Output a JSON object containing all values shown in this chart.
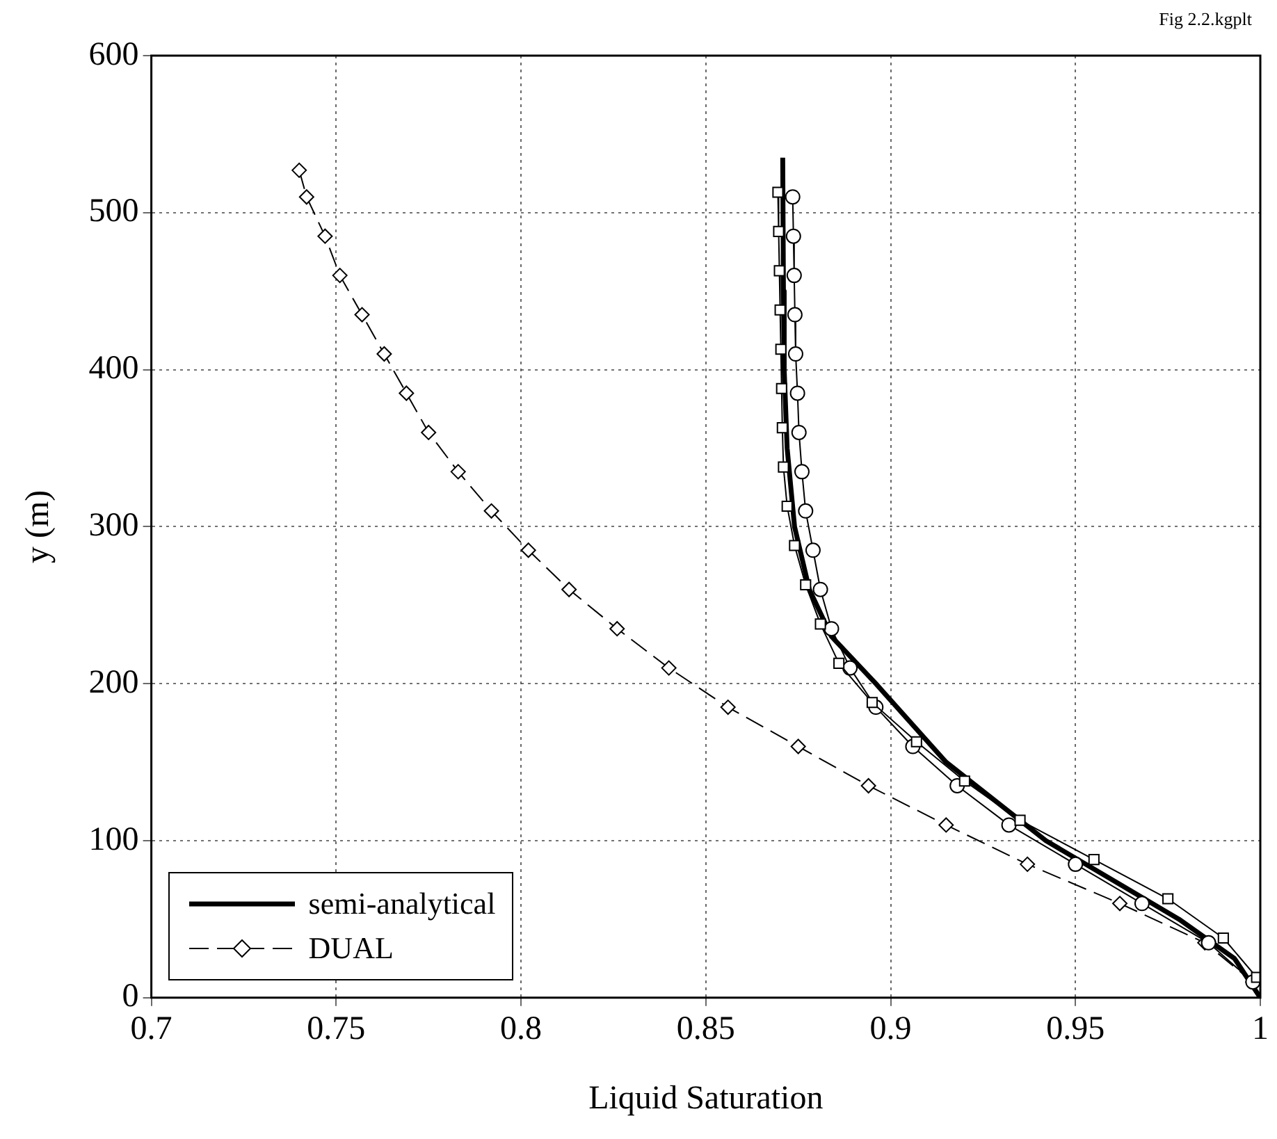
{
  "chart_data": {
    "type": "line",
    "xlabel": "Liquid Saturation",
    "ylabel": "y (m)",
    "xlim": [
      0.7,
      1
    ],
    "xticks": [
      0.7,
      0.75,
      0.8,
      0.85,
      0.9,
      0.95,
      1
    ],
    "ylim": [
      0,
      600
    ],
    "yticks": [
      0,
      100,
      200,
      300,
      400,
      500,
      600
    ],
    "grid": true,
    "legend": "bottom left",
    "annotations": [
      "Fig 2.2.kgplt"
    ],
    "series": [
      {
        "name": "semi-analytical",
        "color": "#000000",
        "marker": "none",
        "line_style": "solid",
        "x": [
          0.8708,
          0.871,
          0.8712,
          0.872,
          0.874,
          0.878,
          0.884,
          0.896,
          0.915,
          0.942,
          0.978,
          0.993,
          1.0
        ],
        "values": [
          535,
          450,
          400,
          350,
          300,
          260,
          230,
          200,
          150,
          100,
          50,
          25,
          0
        ]
      },
      {
        "color": "#000000",
        "marker": "square",
        "line_style": "solid",
        "x": [
          0.8695,
          0.8697,
          0.8699,
          0.8701,
          0.8703,
          0.8705,
          0.8707,
          0.871,
          0.872,
          0.874,
          0.877,
          0.881,
          0.886,
          0.895,
          0.907,
          0.92,
          0.935,
          0.955,
          0.975,
          0.99,
          0.999
        ],
        "values": [
          513,
          488,
          463,
          438,
          413,
          388,
          363,
          338,
          313,
          288,
          263,
          238,
          213,
          188,
          163,
          138,
          113,
          88,
          63,
          38,
          13
        ]
      },
      {
        "color": "#000000",
        "marker": "circle",
        "line_style": "solid",
        "x": [
          0.8735,
          0.8737,
          0.8739,
          0.8741,
          0.8743,
          0.8748,
          0.8752,
          0.876,
          0.877,
          0.879,
          0.881,
          0.884,
          0.889,
          0.896,
          0.906,
          0.918,
          0.932,
          0.95,
          0.968,
          0.986,
          0.998
        ],
        "values": [
          510,
          485,
          460,
          435,
          410,
          385,
          360,
          335,
          310,
          285,
          260,
          235,
          210,
          185,
          160,
          135,
          110,
          85,
          60,
          35,
          10
        ]
      },
      {
        "name": "DUAL",
        "color": "#000000",
        "marker": "diamond",
        "line_style": "dashed",
        "x": [
          0.74,
          0.742,
          0.747,
          0.751,
          0.757,
          0.763,
          0.769,
          0.775,
          0.783,
          0.792,
          0.802,
          0.813,
          0.826,
          0.84,
          0.856,
          0.875,
          0.894,
          0.915,
          0.937,
          0.962,
          0.985,
          0.998
        ],
        "values": [
          527,
          510,
          485,
          460,
          435,
          410,
          385,
          360,
          335,
          310,
          285,
          260,
          235,
          210,
          185,
          160,
          135,
          110,
          85,
          60,
          35,
          10
        ]
      }
    ]
  }
}
